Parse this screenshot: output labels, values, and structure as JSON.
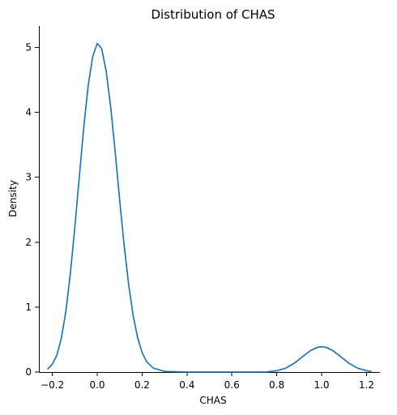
{
  "chart_data": {
    "type": "line",
    "title": "Distribution of CHAS",
    "xlabel": "CHAS",
    "ylabel": "Density",
    "xlim": [
      -0.26,
      1.26
    ],
    "ylim": [
      0,
      5.33
    ],
    "grid": false,
    "legend": "none",
    "x_ticks": [
      -0.2,
      0.0,
      0.2,
      0.4,
      0.6,
      0.8,
      1.0,
      1.2
    ],
    "x_tick_labels": [
      "−0.2",
      "0.0",
      "0.2",
      "0.4",
      "0.6",
      "0.8",
      "1.0",
      "1.2"
    ],
    "y_ticks": [
      0,
      1,
      2,
      3,
      4,
      5
    ],
    "y_tick_labels": [
      "0",
      "1",
      "2",
      "3",
      "4",
      "5"
    ],
    "series": [
      {
        "color": "#1f77b4",
        "x": [
          -0.22,
          -0.2,
          -0.18,
          -0.16,
          -0.14,
          -0.12,
          -0.1,
          -0.08,
          -0.06,
          -0.04,
          -0.02,
          0.0,
          0.02,
          0.04,
          0.06,
          0.08,
          0.1,
          0.12,
          0.14,
          0.16,
          0.18,
          0.2,
          0.22,
          0.25,
          0.3,
          0.4,
          0.5,
          0.6,
          0.7,
          0.75,
          0.8,
          0.84,
          0.88,
          0.92,
          0.95,
          0.98,
          1.0,
          1.02,
          1.05,
          1.08,
          1.12,
          1.16,
          1.2,
          1.22
        ],
        "y": [
          0.05,
          0.12,
          0.26,
          0.52,
          0.93,
          1.51,
          2.22,
          3.0,
          3.77,
          4.42,
          4.86,
          5.06,
          4.98,
          4.63,
          4.08,
          3.39,
          2.65,
          1.95,
          1.35,
          0.87,
          0.53,
          0.3,
          0.16,
          0.06,
          0.01,
          0.0,
          0.0,
          0.0,
          0.0,
          0.0,
          0.02,
          0.06,
          0.14,
          0.25,
          0.33,
          0.38,
          0.39,
          0.38,
          0.33,
          0.25,
          0.14,
          0.06,
          0.02,
          0.01
        ]
      }
    ]
  }
}
